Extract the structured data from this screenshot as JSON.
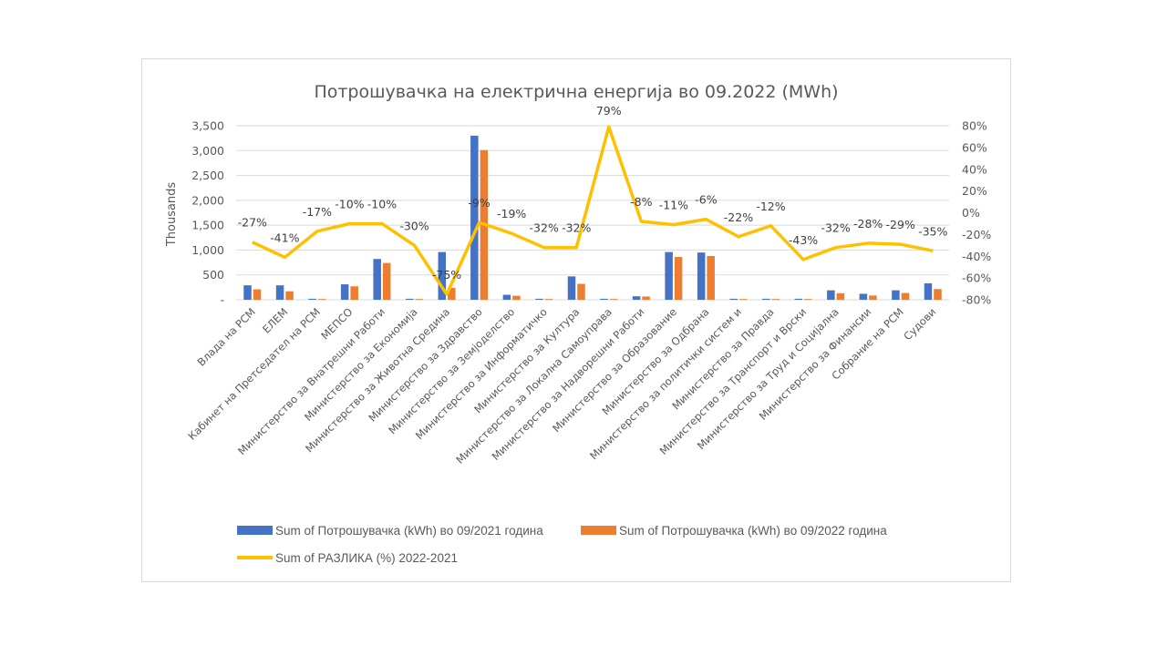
{
  "chart_data": {
    "type": "bar",
    "title": "Потрошувачка на електрична енергија во 09.2022 (MWh)",
    "ylabel": "Thousands",
    "ylabel_right": "",
    "xlabel": "",
    "ylim": [
      0,
      3500
    ],
    "ylim_right": [
      -80,
      80
    ],
    "grid": true,
    "legend_position": "bottom",
    "yticks": [
      "-",
      "500",
      "1,000",
      "1,500",
      "2,000",
      "2,500",
      "3,000",
      "3,500"
    ],
    "ytick_values": [
      0,
      500,
      1000,
      1500,
      2000,
      2500,
      3000,
      3500
    ],
    "yticks_right": [
      "-80%",
      "-60%",
      "-40%",
      "-20%",
      "0%",
      "20%",
      "40%",
      "60%",
      "80%"
    ],
    "ytick_right_values": [
      -80,
      -60,
      -40,
      -20,
      0,
      20,
      40,
      60,
      80
    ],
    "categories": [
      "Влада на РСМ",
      "ЕЛЕМ",
      "Кабинет на Претседател на РСМ",
      "МЕПСО",
      "Министерство за Внатрешни Работи",
      "Министерство за Економија",
      "Министерство за Животна Средина",
      "Министерство за Здравство",
      "Министерство за Земјоделство",
      "Министерство за Информатичко",
      "Министерство за Култура",
      "Министерство за Локална Самоуправа",
      "Министерство за Надворешни Работи",
      "Министерство за Образование",
      "Министерство за Одбрана",
      "Министерство за политички систем и",
      "Министерство за Правда",
      "Министерство за Транспорт и Врски",
      "Министерство за Труд и Социјална",
      "Министерство за Финансии",
      "Собрание на РСМ",
      "Судови"
    ],
    "series": [
      {
        "name": "Sum of Потрошувачка (kWh) во 09/2021 година",
        "type": "bar",
        "axis": "left",
        "color": "#4472C4",
        "values": [
          290,
          290,
          20,
          310,
          820,
          20,
          960,
          3300,
          100,
          20,
          470,
          20,
          70,
          960,
          950,
          20,
          20,
          20,
          190,
          120,
          190,
          330
        ]
      },
      {
        "name": "Sum of Потрошувачка (kWh) во 09/2022 година",
        "type": "bar",
        "axis": "left",
        "color": "#ED7D31",
        "values": [
          210,
          170,
          15,
          270,
          740,
          15,
          240,
          3010,
          80,
          15,
          320,
          15,
          65,
          860,
          880,
          15,
          15,
          15,
          130,
          85,
          135,
          215
        ]
      },
      {
        "name": "Sum of РАЗЛИКА (%) 2022-2021",
        "type": "line",
        "axis": "right",
        "color": "#FFC000",
        "values": [
          -27,
          -41,
          -17,
          -10,
          -10,
          -30,
          -75,
          -9,
          -19,
          -32,
          -32,
          79,
          -8,
          -11,
          -6,
          -22,
          -12,
          -43,
          -32,
          -28,
          -29,
          -35
        ],
        "labels": [
          "-27%",
          "-41%",
          "-17%",
          "-10%",
          "-10%",
          "-30%",
          "-75%",
          "-9%",
          "-19%",
          "-32%",
          "-32%",
          "79%",
          "-8%",
          "-11%",
          "-6%",
          "-22%",
          "-12%",
          "-43%",
          "-32%",
          "-28%",
          "-29%",
          "-35%"
        ]
      }
    ]
  }
}
